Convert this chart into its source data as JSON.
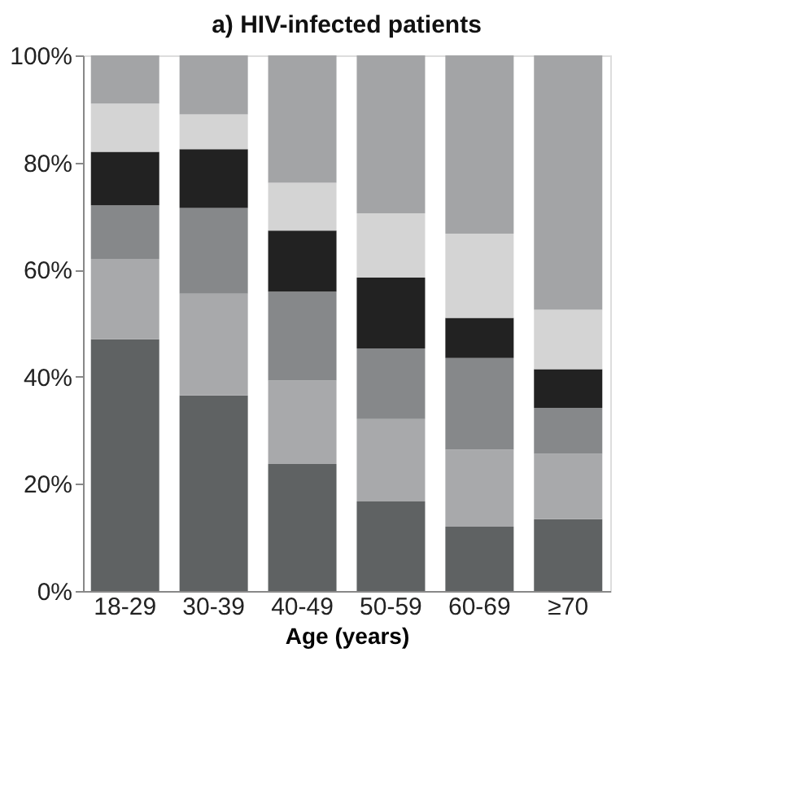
{
  "chart_data": {
    "type": "bar",
    "title": "a) HIV-infected patients",
    "xlabel": "Age (years)",
    "stacked": true,
    "categories": [
      "18-29",
      "30-39",
      "40-49",
      "50-59",
      "60-69",
      "≥70"
    ],
    "series": [
      {
        "color": "#5f6263",
        "values": [
          47,
          36.5,
          23.7,
          16.7,
          12,
          13.4
        ]
      },
      {
        "color": "#a8a9ab",
        "values": [
          15,
          19,
          15.6,
          15.4,
          14.4,
          12.2
        ]
      },
      {
        "color": "#86888a",
        "values": [
          10,
          16,
          16.6,
          13.2,
          17.1,
          8.6
        ]
      },
      {
        "color": "#222222",
        "values": [
          10,
          11,
          11.4,
          13.2,
          7.5,
          7.2
        ]
      },
      {
        "color": "#d4d4d4",
        "values": [
          9,
          6.5,
          8.9,
          12,
          15.7,
          11.1
        ]
      },
      {
        "color": "#a3a4a6",
        "values": [
          9,
          11,
          23.8,
          29.5,
          33.3,
          47.5
        ]
      }
    ],
    "ylim": [
      0,
      100
    ],
    "yticks": [
      {
        "value": 0,
        "label": "0%"
      },
      {
        "value": 20,
        "label": "20%"
      },
      {
        "value": 40,
        "label": "40%"
      },
      {
        "value": 60,
        "label": "60%"
      },
      {
        "value": 80,
        "label": "80%"
      },
      {
        "value": 100,
        "label": "100%"
      }
    ],
    "grid": false
  }
}
